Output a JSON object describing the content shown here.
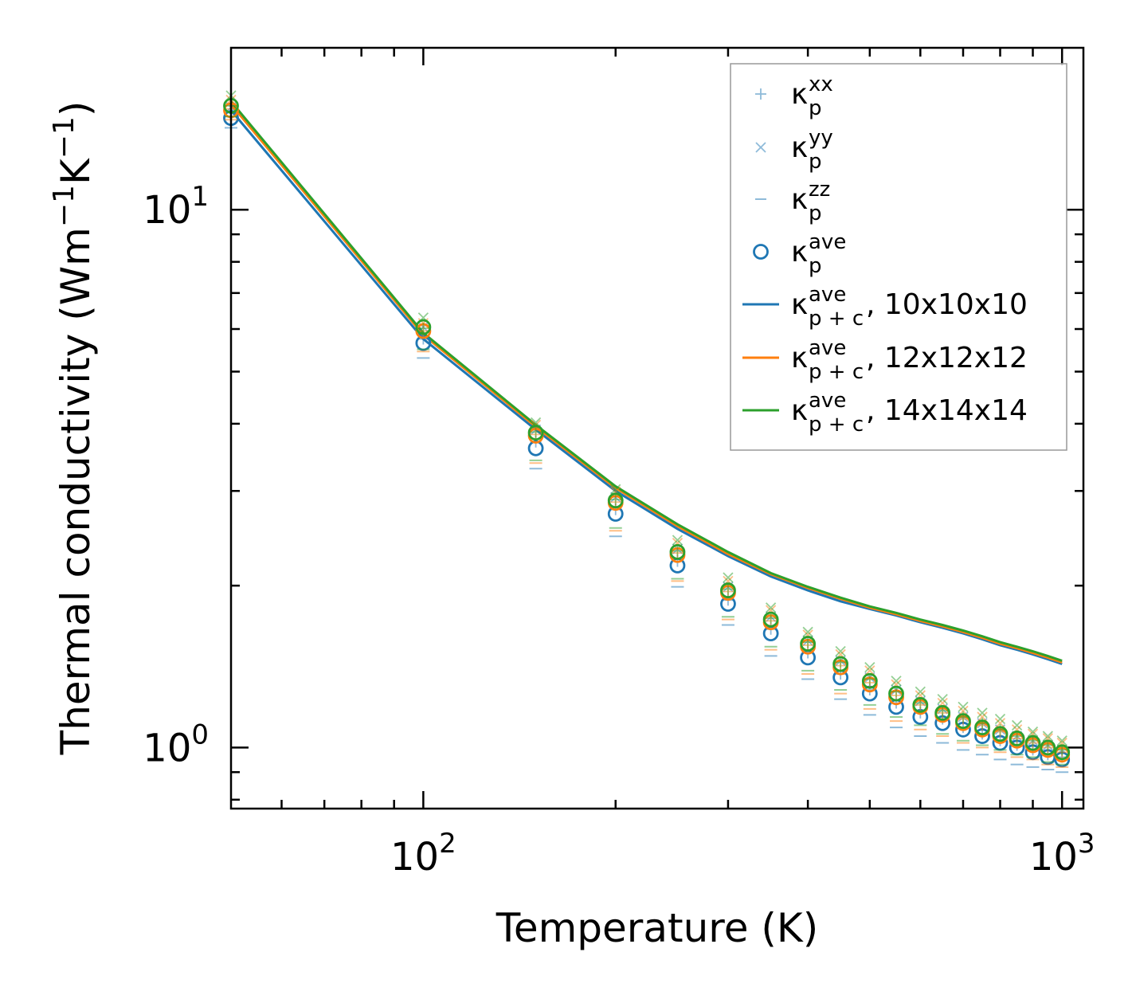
{
  "chart_data": {
    "type": "scatter",
    "xscale": "log",
    "yscale": "log",
    "xlim": [
      50,
      1080
    ],
    "ylim": [
      0.77,
      20
    ],
    "xlabel": "Temperature (K)",
    "ylabel": {
      "prefix": "Thermal conductivity (Wm",
      "exp1": "−1",
      "mid": "K",
      "exp2": "−1",
      "suffix": ")"
    },
    "x_ticks": [
      {
        "value": 100,
        "base": "10",
        "exp": "2"
      },
      {
        "value": 1000,
        "base": "10",
        "exp": "3"
      }
    ],
    "y_ticks": [
      {
        "value": 1,
        "base": "10",
        "exp": "0"
      },
      {
        "value": 10,
        "base": "10",
        "exp": "1"
      }
    ],
    "temperatures": [
      50,
      100,
      150,
      200,
      250,
      300,
      350,
      400,
      450,
      500,
      550,
      600,
      650,
      700,
      750,
      800,
      850,
      900,
      950,
      1000
    ],
    "series": [
      {
        "mesh": "10x10x10",
        "color": "#1f77b4",
        "kxx": [
          14.9,
          5.75,
          3.7,
          2.77,
          2.22,
          1.88,
          1.66,
          1.5,
          1.37,
          1.28,
          1.21,
          1.16,
          1.13,
          1.09,
          1.06,
          1.03,
          1.01,
          0.99,
          0.97,
          0.96
        ],
        "kyy": [
          15.5,
          6.05,
          3.9,
          2.92,
          2.34,
          1.99,
          1.75,
          1.58,
          1.45,
          1.35,
          1.28,
          1.22,
          1.18,
          1.14,
          1.11,
          1.08,
          1.05,
          1.03,
          1.01,
          0.99
        ],
        "kzz": [
          14.2,
          5.3,
          3.3,
          2.47,
          1.99,
          1.69,
          1.48,
          1.34,
          1.23,
          1.15,
          1.09,
          1.05,
          1.02,
          0.99,
          0.97,
          0.95,
          0.93,
          0.92,
          0.91,
          0.9
        ],
        "kave": [
          14.8,
          5.65,
          3.6,
          2.72,
          2.18,
          1.85,
          1.63,
          1.47,
          1.35,
          1.26,
          1.19,
          1.14,
          1.11,
          1.08,
          1.05,
          1.02,
          1.0,
          0.98,
          0.96,
          0.95
        ],
        "kpc": [
          15.3,
          5.75,
          3.9,
          3.0,
          2.55,
          2.27,
          2.08,
          1.96,
          1.87,
          1.81,
          1.76,
          1.71,
          1.67,
          1.63,
          1.59,
          1.55,
          1.52,
          1.49,
          1.46,
          1.43
        ]
      },
      {
        "mesh": "12x12x12",
        "color": "#ff7f0e",
        "kxx": [
          15.4,
          5.95,
          3.82,
          2.86,
          2.3,
          1.95,
          1.72,
          1.55,
          1.42,
          1.32,
          1.25,
          1.2,
          1.16,
          1.13,
          1.1,
          1.07,
          1.04,
          1.02,
          1.0,
          0.98
        ],
        "kyy": [
          16.0,
          6.15,
          3.98,
          2.99,
          2.4,
          2.04,
          1.8,
          1.62,
          1.49,
          1.39,
          1.31,
          1.25,
          1.21,
          1.17,
          1.14,
          1.11,
          1.08,
          1.06,
          1.04,
          1.02
        ],
        "kzz": [
          14.7,
          5.45,
          3.38,
          2.53,
          2.04,
          1.73,
          1.52,
          1.37,
          1.26,
          1.18,
          1.12,
          1.08,
          1.05,
          1.02,
          1.0,
          0.98,
          0.96,
          0.95,
          0.93,
          0.92
        ],
        "kave": [
          15.3,
          5.95,
          3.8,
          2.85,
          2.28,
          1.94,
          1.71,
          1.54,
          1.41,
          1.31,
          1.24,
          1.19,
          1.15,
          1.11,
          1.08,
          1.05,
          1.03,
          1.01,
          0.99,
          0.97
        ],
        "kpc": [
          15.7,
          5.85,
          3.95,
          3.04,
          2.58,
          2.29,
          2.1,
          1.98,
          1.89,
          1.82,
          1.77,
          1.72,
          1.68,
          1.64,
          1.6,
          1.56,
          1.53,
          1.5,
          1.47,
          1.44
        ]
      },
      {
        "mesh": "14x14x14",
        "color": "#2ca02c",
        "kxx": [
          15.6,
          6.02,
          3.86,
          2.89,
          2.32,
          1.97,
          1.74,
          1.57,
          1.44,
          1.34,
          1.27,
          1.21,
          1.17,
          1.14,
          1.11,
          1.08,
          1.05,
          1.03,
          1.01,
          0.99
        ],
        "kyy": [
          16.3,
          6.3,
          4.02,
          3.02,
          2.43,
          2.07,
          1.82,
          1.64,
          1.51,
          1.41,
          1.33,
          1.27,
          1.23,
          1.19,
          1.16,
          1.13,
          1.1,
          1.07,
          1.05,
          1.03
        ],
        "kzz": [
          14.9,
          5.5,
          3.42,
          2.56,
          2.06,
          1.75,
          1.54,
          1.39,
          1.28,
          1.2,
          1.14,
          1.1,
          1.06,
          1.03,
          1.01,
          0.99,
          0.97,
          0.96,
          0.94,
          0.93
        ],
        "kave": [
          15.6,
          6.05,
          3.85,
          2.88,
          2.31,
          1.96,
          1.73,
          1.56,
          1.43,
          1.33,
          1.26,
          1.2,
          1.16,
          1.12,
          1.09,
          1.06,
          1.04,
          1.02,
          1.0,
          0.98
        ],
        "kpc": [
          15.9,
          5.9,
          3.98,
          3.06,
          2.6,
          2.31,
          2.11,
          1.99,
          1.9,
          1.83,
          1.78,
          1.73,
          1.69,
          1.65,
          1.61,
          1.57,
          1.54,
          1.51,
          1.48,
          1.45
        ]
      }
    ],
    "legend": {
      "position": "top-right",
      "entries": [
        {
          "kind": "plus",
          "base": "κ",
          "sup": "xx",
          "sub": "p",
          "suffix": ""
        },
        {
          "kind": "x",
          "base": "κ",
          "sup": "yy",
          "sub": "p",
          "suffix": ""
        },
        {
          "kind": "dash",
          "base": "κ",
          "sup": "zz",
          "sub": "p",
          "suffix": ""
        },
        {
          "kind": "circle",
          "base": "κ",
          "sup": "ave",
          "sub": "p",
          "suffix": ""
        },
        {
          "kind": "line",
          "base": "κ",
          "sup": "ave",
          "sub": "p + c",
          "suffix": ", 10x10x10",
          "color": "#1f77b4"
        },
        {
          "kind": "line",
          "base": "κ",
          "sup": "ave",
          "sub": "p + c",
          "suffix": ", 12x12x12",
          "color": "#ff7f0e"
        },
        {
          "kind": "line",
          "base": "κ",
          "sup": "ave",
          "sub": "p + c",
          "suffix": ", 14x14x14",
          "color": "#2ca02c"
        }
      ]
    }
  }
}
